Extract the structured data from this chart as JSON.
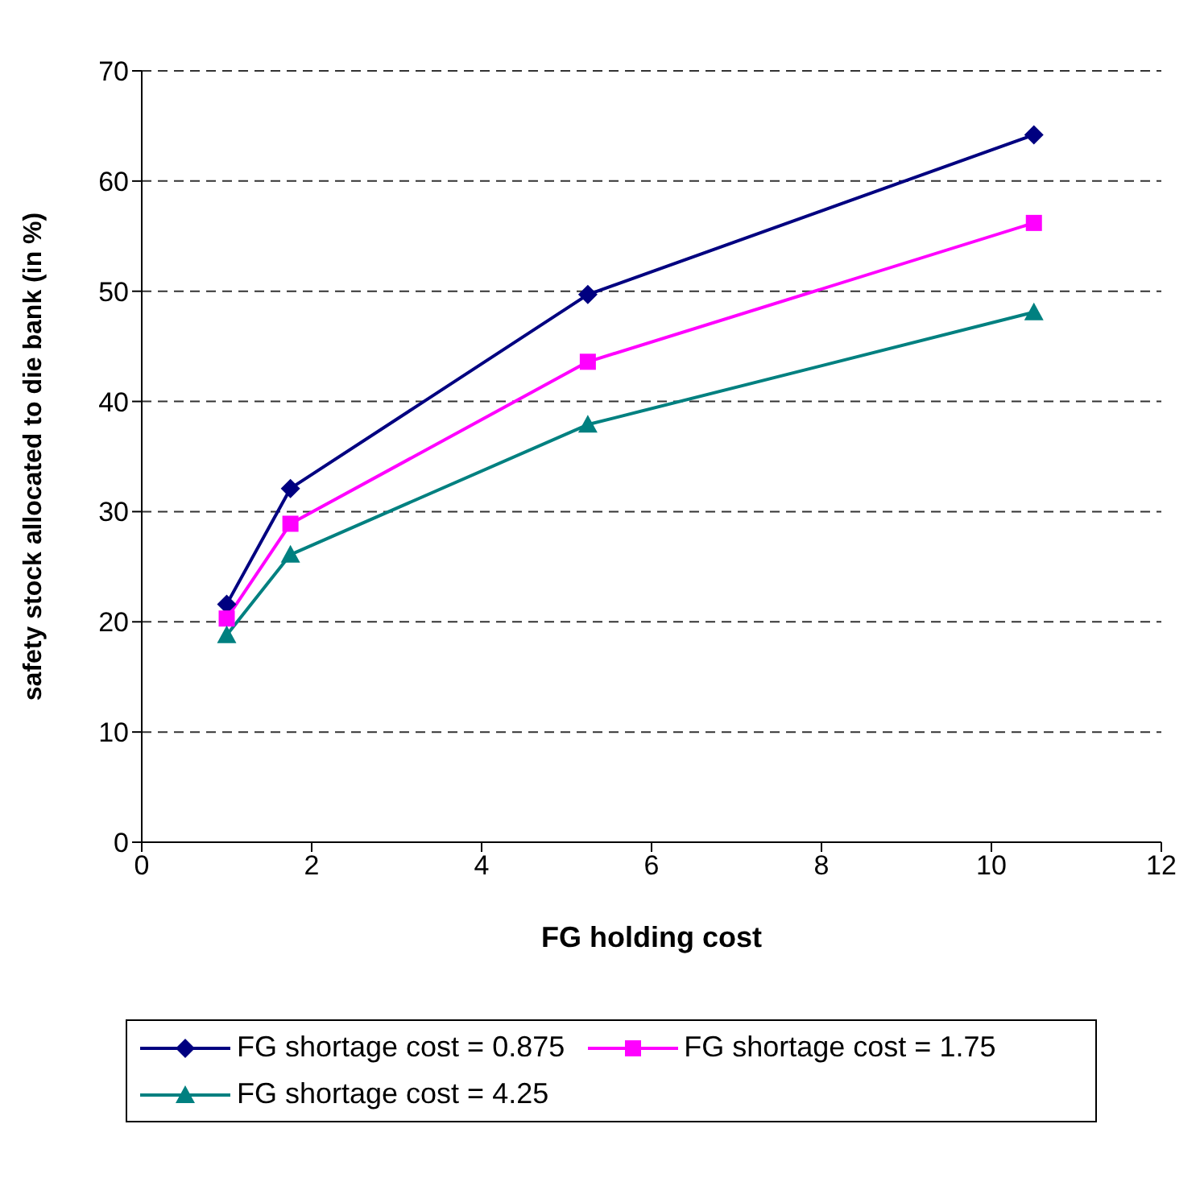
{
  "chart_data": {
    "type": "line",
    "xlabel": "FG holding cost",
    "ylabel": "safety stock allocated to die bank  (in %)",
    "x": [
      1,
      1.75,
      5.25,
      10.5
    ],
    "series": [
      {
        "name": "FG shortage cost = 0.875",
        "color": "#000080",
        "marker": "diamond",
        "values": [
          21.6,
          32.1,
          49.7,
          64.2
        ]
      },
      {
        "name": "FG shortage cost = 1.75",
        "color": "#ff00ff",
        "marker": "square",
        "values": [
          20.3,
          28.9,
          43.6,
          56.2
        ]
      },
      {
        "name": "FG shortage cost = 4.25",
        "color": "#008080",
        "marker": "triangle",
        "values": [
          18.8,
          26.1,
          37.9,
          48.1
        ]
      }
    ],
    "xlim": [
      0,
      12
    ],
    "xticks": [
      0,
      2,
      4,
      6,
      8,
      10,
      12
    ],
    "ylim": [
      0,
      70
    ],
    "yticks": [
      0,
      10,
      20,
      30,
      40,
      50,
      60,
      70
    ],
    "grid": "y",
    "legend": "bottom",
    "line_style": "solid"
  }
}
